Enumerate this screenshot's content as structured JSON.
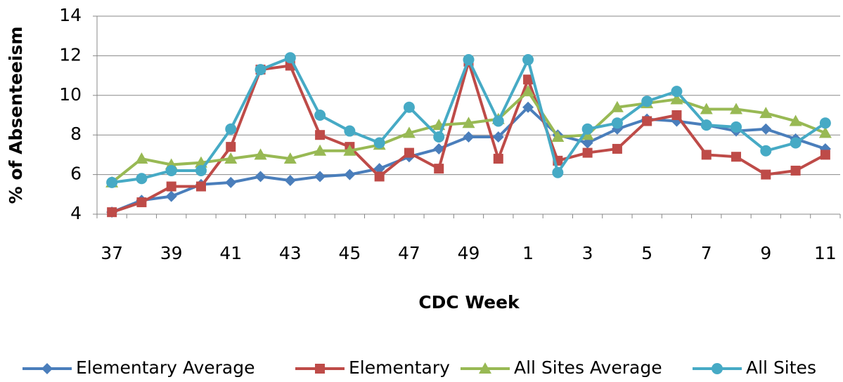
{
  "chart_data": {
    "type": "line",
    "y_label": "% of Absenteeism",
    "x_label": "CDC Week",
    "categories": [
      37,
      null,
      39,
      null,
      41,
      null,
      43,
      null,
      45,
      null,
      47,
      null,
      49,
      null,
      1,
      null,
      3,
      null,
      5,
      null,
      7,
      null,
      9,
      null,
      11
    ],
    "ylim": [
      4,
      14
    ],
    "yticks": [
      4,
      6,
      8,
      10,
      12,
      14
    ],
    "grid": true,
    "legend": "bottom",
    "series": [
      {
        "name": "Elementary Average",
        "color": "#4a7ebb",
        "marker": "diamond",
        "values": [
          4.1,
          4.7,
          4.9,
          5.5,
          5.6,
          5.9,
          5.7,
          5.9,
          6.0,
          6.3,
          6.9,
          7.3,
          7.9,
          7.9,
          9.4,
          8.0,
          7.6,
          8.3,
          8.8,
          8.7,
          8.5,
          8.2,
          8.3,
          7.8,
          7.3
        ]
      },
      {
        "name": "Elementary",
        "color": "#be4b48",
        "marker": "square",
        "values": [
          4.1,
          4.6,
          5.4,
          5.4,
          7.4,
          11.3,
          11.5,
          8.0,
          7.4,
          5.9,
          7.1,
          6.3,
          11.7,
          6.8,
          10.8,
          6.7,
          7.1,
          7.3,
          8.7,
          9.0,
          7.0,
          6.9,
          6.0,
          6.2,
          7.0
        ]
      },
      {
        "name": "All Sites Average",
        "color": "#98b954",
        "marker": "triangle",
        "values": [
          5.6,
          6.8,
          6.5,
          6.6,
          6.8,
          7.0,
          6.8,
          7.2,
          7.2,
          7.5,
          8.1,
          8.5,
          8.6,
          8.8,
          10.2,
          7.9,
          8.0,
          9.4,
          9.6,
          9.8,
          9.3,
          9.3,
          9.1,
          8.7,
          8.1
        ]
      },
      {
        "name": "All Sites",
        "color": "#46aac5",
        "marker": "circle",
        "values": [
          5.6,
          5.8,
          6.2,
          6.2,
          8.3,
          11.3,
          11.9,
          9.0,
          8.2,
          7.6,
          9.4,
          7.9,
          11.8,
          8.7,
          11.8,
          6.1,
          8.3,
          8.6,
          9.7,
          10.2,
          8.5,
          8.4,
          7.2,
          7.6,
          8.6
        ]
      }
    ]
  }
}
